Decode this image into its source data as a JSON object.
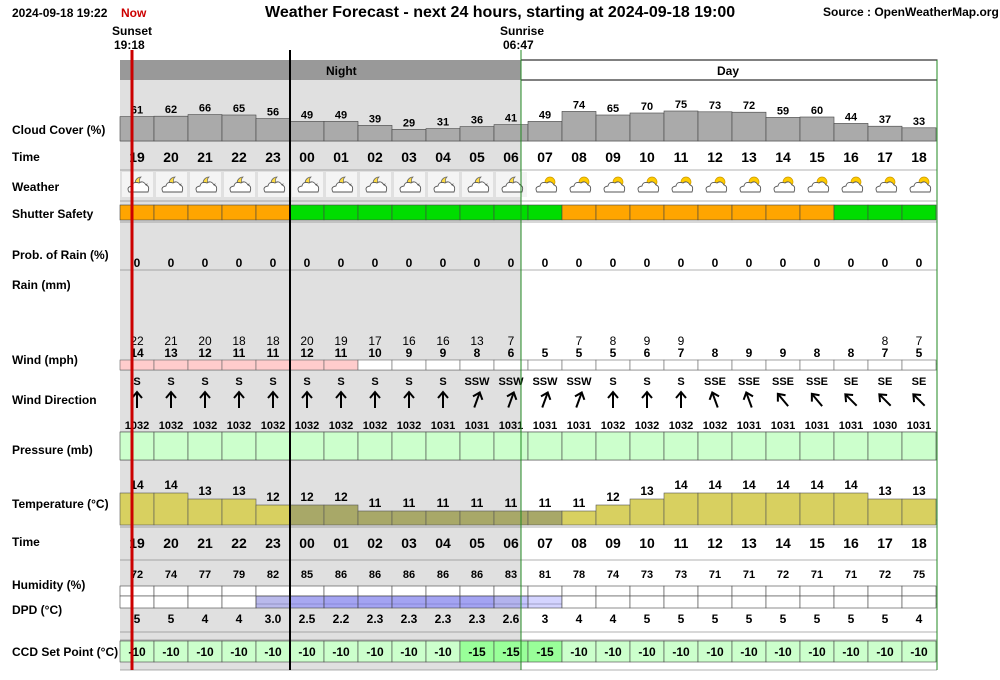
{
  "header": {
    "datetime": "2024-09-18 19:22",
    "now_label": "Now",
    "title": "Weather Forecast - next 24 hours, starting at 2024-09-18 19:00",
    "source": "Source : OpenWeatherMap.org",
    "sunset_label": "Sunset",
    "sunset_time": "19:18",
    "sunrise_label": "Sunrise",
    "sunrise_time": "06:47",
    "night_label": "Night",
    "day_label": "Day"
  },
  "row_labels": {
    "cloud": "Cloud Cover (%)",
    "time": "Time",
    "weather": "Weather",
    "shutter": "Shutter Safety",
    "prob_rain": "Prob. of Rain (%)",
    "rain": "Rain (mm)",
    "wind": "Wind (mph)",
    "wind_dir": "Wind Direction",
    "pressure": "Pressure (mb)",
    "temperature": "Temperature (°C)",
    "time2": "Time",
    "humidity": "Humidity (%)",
    "dpd": "DPD (°C)",
    "ccd": "CCD Set Point (°C)"
  },
  "colors": {
    "shutter_orange": "#ffa500",
    "shutter_green": "#00dd00",
    "night_shade": "#e0e0e0",
    "night_bar": "#999999",
    "pressure_green": "#ccffcc",
    "ccd_green": "#ccffcc",
    "ccd_bright": "#99ff99",
    "temp_day": "#d8d060",
    "temp_night": "#a8a868",
    "now_line": "#cc0000"
  },
  "chart_data": {
    "type": "table",
    "hours": [
      "19",
      "20",
      "21",
      "22",
      "23",
      "00",
      "01",
      "02",
      "03",
      "04",
      "05",
      "06",
      "07",
      "08",
      "09",
      "10",
      "11",
      "12",
      "13",
      "14",
      "15",
      "16",
      "17",
      "18"
    ],
    "cloud_cover": [
      61,
      62,
      66,
      65,
      56,
      49,
      49,
      39,
      29,
      31,
      36,
      41,
      49,
      74,
      65,
      70,
      75,
      73,
      72,
      59,
      60,
      44,
      37,
      33
    ],
    "weather_icon": [
      "moon-cloud-icon",
      "moon-cloud-icon",
      "moon-cloud-icon",
      "moon-cloud-icon",
      "moon-cloud-icon",
      "moon-cloud-icon",
      "moon-cloud-icon",
      "moon-cloud-icon",
      "moon-cloud-icon",
      "moon-cloud-icon",
      "moon-cloud-icon",
      "moon-cloud-icon",
      "sun-cloud-icon",
      "sun-cloud-icon",
      "sun-cloud-icon",
      "sun-cloud-icon",
      "sun-cloud-icon",
      "sun-cloud-icon",
      "sun-cloud-icon",
      "sun-cloud-icon",
      "sun-cloud-icon",
      "sun-cloud-icon",
      "sun-cloud-icon",
      "sun-cloud-icon"
    ],
    "shutter_safety": [
      "orange",
      "orange",
      "orange",
      "orange",
      "orange",
      "green",
      "green",
      "green",
      "green",
      "green",
      "green",
      "green",
      "green",
      "orange",
      "orange",
      "orange",
      "orange",
      "orange",
      "orange",
      "orange",
      "orange",
      "green",
      "green",
      "green"
    ],
    "prob_rain": [
      0,
      0,
      0,
      0,
      0,
      0,
      0,
      0,
      0,
      0,
      0,
      0,
      0,
      0,
      0,
      0,
      0,
      0,
      0,
      0,
      0,
      0,
      0,
      0
    ],
    "wind_gust": [
      "22",
      "21",
      "20",
      "18",
      "18",
      "20",
      "19",
      "17",
      "16",
      "16",
      "13",
      "7",
      "",
      "7",
      "8",
      "9",
      "9",
      "",
      "",
      "",
      "",
      "",
      "8",
      "7"
    ],
    "wind_speed": [
      14,
      13,
      12,
      11,
      11,
      12,
      11,
      10,
      9,
      9,
      8,
      6,
      5,
      5,
      5,
      6,
      7,
      8,
      9,
      9,
      8,
      8,
      7,
      5
    ],
    "wind_dir": [
      "S",
      "S",
      "S",
      "S",
      "S",
      "S",
      "S",
      "S",
      "S",
      "S",
      "SSW",
      "SSW",
      "SSW",
      "SSW",
      "S",
      "S",
      "S",
      "SSE",
      "SSE",
      "SSE",
      "SSE",
      "SE",
      "SE",
      "SE"
    ],
    "wind_arrow_deg": [
      0,
      0,
      0,
      0,
      0,
      0,
      0,
      0,
      0,
      0,
      20,
      20,
      20,
      20,
      0,
      0,
      0,
      -20,
      -20,
      -40,
      -40,
      -45,
      -45,
      -45
    ],
    "pressure": [
      1032,
      1032,
      1032,
      1032,
      1032,
      1032,
      1032,
      1032,
      1032,
      1031,
      1031,
      1031,
      1031,
      1031,
      1032,
      1032,
      1032,
      1032,
      1031,
      1031,
      1031,
      1031,
      1030,
      1031
    ],
    "temperature": [
      14,
      14,
      13,
      13,
      12,
      12,
      12,
      11,
      11,
      11,
      11,
      11,
      11,
      11,
      12,
      13,
      14,
      14,
      14,
      14,
      14,
      14,
      13,
      13
    ],
    "humidity": [
      72,
      74,
      77,
      79,
      82,
      85,
      86,
      86,
      86,
      86,
      86,
      83,
      81,
      78,
      74,
      73,
      73,
      71,
      71,
      72,
      71,
      71,
      72,
      75
    ],
    "dpd": [
      "5",
      "5",
      "4",
      "4",
      "3.0",
      "2.5",
      "2.2",
      "2.3",
      "2.3",
      "2.3",
      "2.3",
      "2.6",
      "3",
      "4",
      "4",
      "5",
      "5",
      "5",
      "5",
      "5",
      "5",
      "5",
      "5",
      "4"
    ],
    "ccd_set_point": [
      -10,
      -10,
      -10,
      -10,
      -10,
      -10,
      -10,
      -10,
      -10,
      -10,
      -15,
      -15,
      -15,
      -10,
      -10,
      -10,
      -10,
      -10,
      -10,
      -10,
      -10,
      -10,
      -10,
      -10
    ]
  }
}
